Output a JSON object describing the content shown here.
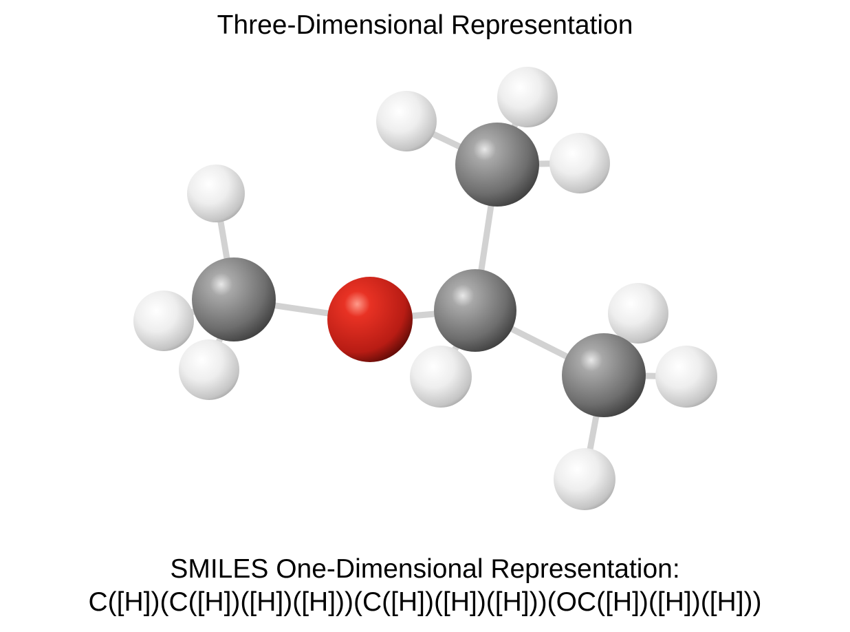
{
  "title": "Three-Dimensional Representation",
  "smiles_label": "SMILES One-Dimensional Representation:",
  "smiles_string": "C([H])(C([H])([H])([H]))(C([H])([H])([H]))(OC([H])([H])([H]))",
  "colors": {
    "carbon": "#8a8a8a",
    "oxygen": "#e02a20",
    "hydrogen": "#f2f2f2",
    "bond": "#d6d6d6",
    "background": "#ffffff"
  },
  "molecule": {
    "atoms": [
      {
        "id": "h-me-top",
        "element": "H"
      },
      {
        "id": "h-me-left",
        "element": "H"
      },
      {
        "id": "h-me-bottom",
        "element": "H"
      },
      {
        "id": "c-methoxy",
        "element": "C"
      },
      {
        "id": "o-ether",
        "element": "O"
      },
      {
        "id": "h-top-left",
        "element": "H"
      },
      {
        "id": "h-top-back",
        "element": "H"
      },
      {
        "id": "h-top-right",
        "element": "H"
      },
      {
        "id": "c-methyl-top",
        "element": "C"
      },
      {
        "id": "h-central",
        "element": "H"
      },
      {
        "id": "c-central",
        "element": "C"
      },
      {
        "id": "h-right-top",
        "element": "H"
      },
      {
        "id": "h-right-right",
        "element": "H"
      },
      {
        "id": "h-right-bottom",
        "element": "H"
      },
      {
        "id": "c-methyl-right",
        "element": "C"
      }
    ]
  }
}
